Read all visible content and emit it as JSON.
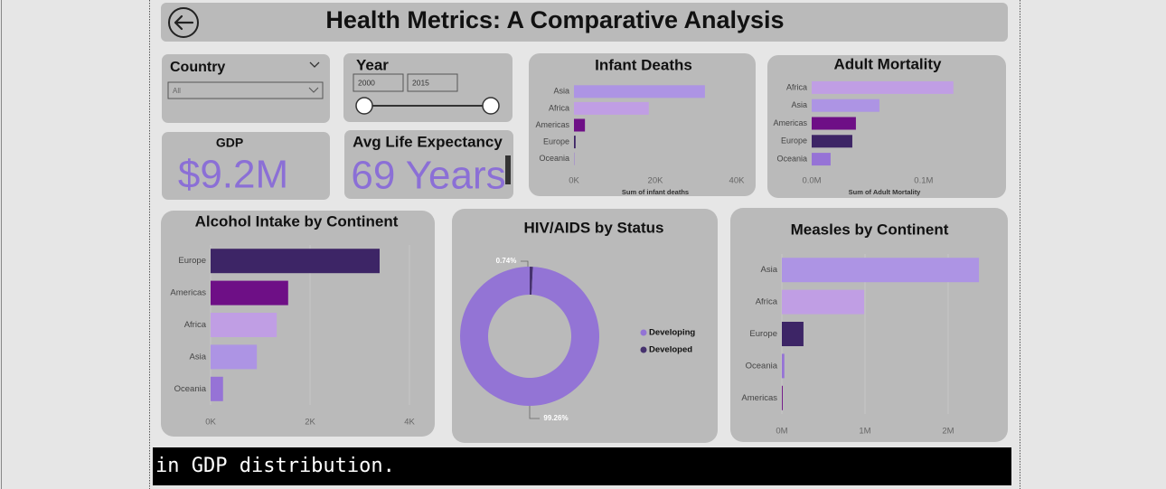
{
  "header": {
    "title": "Health Metrics: A Comparative Analysis"
  },
  "filters": {
    "country": {
      "label": "Country",
      "selected": "All"
    },
    "year": {
      "label": "Year",
      "start": "2000",
      "end": "2015"
    }
  },
  "cards": [
    {
      "label": "GDP",
      "value": "$9.2M"
    },
    {
      "label": "Avg Life Expectancy",
      "value": "69 Years"
    }
  ],
  "chart_data": [
    {
      "type": "bar",
      "title": "Infant Deaths",
      "categories": [
        "Asia",
        "Africa",
        "Americas",
        "Europe",
        "Oceania"
      ],
      "values": [
        32200,
        18400,
        2700,
        400,
        100
      ],
      "colors": [
        "#ad94e4",
        "#c09ee4",
        "#6e0f86",
        "#3d2566",
        "#9673d6"
      ],
      "xlim": [
        0,
        40000
      ],
      "xticks": [
        {
          "value": 0,
          "label": "0K"
        },
        {
          "value": 20000,
          "label": "20K"
        },
        {
          "value": 40000,
          "label": "40K"
        }
      ],
      "xlabel": "Sum of infant deaths",
      "grid": false
    },
    {
      "type": "bar",
      "title": "Adult Mortality",
      "categories": [
        "Africa",
        "Asia",
        "Americas",
        "Europe",
        "Oceania"
      ],
      "values": [
        126600,
        60500,
        39500,
        36300,
        16900
      ],
      "colors": [
        "#c09ee4",
        "#ad94e4",
        "#6e0f86",
        "#3d2566",
        "#9673d6"
      ],
      "xlim": [
        0,
        130000
      ],
      "xticks": [
        {
          "value": 0,
          "label": "0.0M"
        },
        {
          "value": 100000,
          "label": "0.1M"
        }
      ],
      "xlabel": "Sum of Adult Mortality",
      "grid": false
    },
    {
      "type": "bar",
      "title": "Alcohol Intake by Continent",
      "categories": [
        "Europe",
        "Americas",
        "Africa",
        "Asia",
        "Oceania"
      ],
      "values": [
        3400,
        1560,
        1330,
        930,
        250
      ],
      "colors": [
        "#3d2566",
        "#6e0f86",
        "#c09ee4",
        "#ad94e4",
        "#9673d6"
      ],
      "xlim": [
        0,
        4000
      ],
      "xticks": [
        {
          "value": 0,
          "label": "0K"
        },
        {
          "value": 2000,
          "label": "2K"
        },
        {
          "value": 4000,
          "label": "4K"
        }
      ],
      "grid": true
    },
    {
      "type": "pie",
      "title": "HIV/AIDS by Status",
      "donut": true,
      "categories": [
        "Developed",
        "Developing"
      ],
      "values": [
        0.74,
        99.26
      ],
      "value_labels": [
        "0.74%",
        "99.26%"
      ],
      "colors": [
        "#46326e",
        "#9374d5"
      ],
      "legend": "right"
    },
    {
      "type": "bar",
      "title": "Measles by Continent",
      "categories": [
        "Asia",
        "Africa",
        "Europe",
        "Oceania",
        "Americas"
      ],
      "values": [
        2370000,
        990000,
        260000,
        30000,
        10000
      ],
      "colors": [
        "#ad94e4",
        "#c09ee4",
        "#3d2566",
        "#9673d6",
        "#6e0f86"
      ],
      "xlim": [
        0,
        2400000
      ],
      "xticks": [
        {
          "value": 0,
          "label": "0M"
        },
        {
          "value": 1000000,
          "label": "1M"
        },
        {
          "value": 2000000,
          "label": "2M"
        }
      ],
      "grid": true
    }
  ],
  "footer": {
    "caption": "in GDP distribution."
  }
}
